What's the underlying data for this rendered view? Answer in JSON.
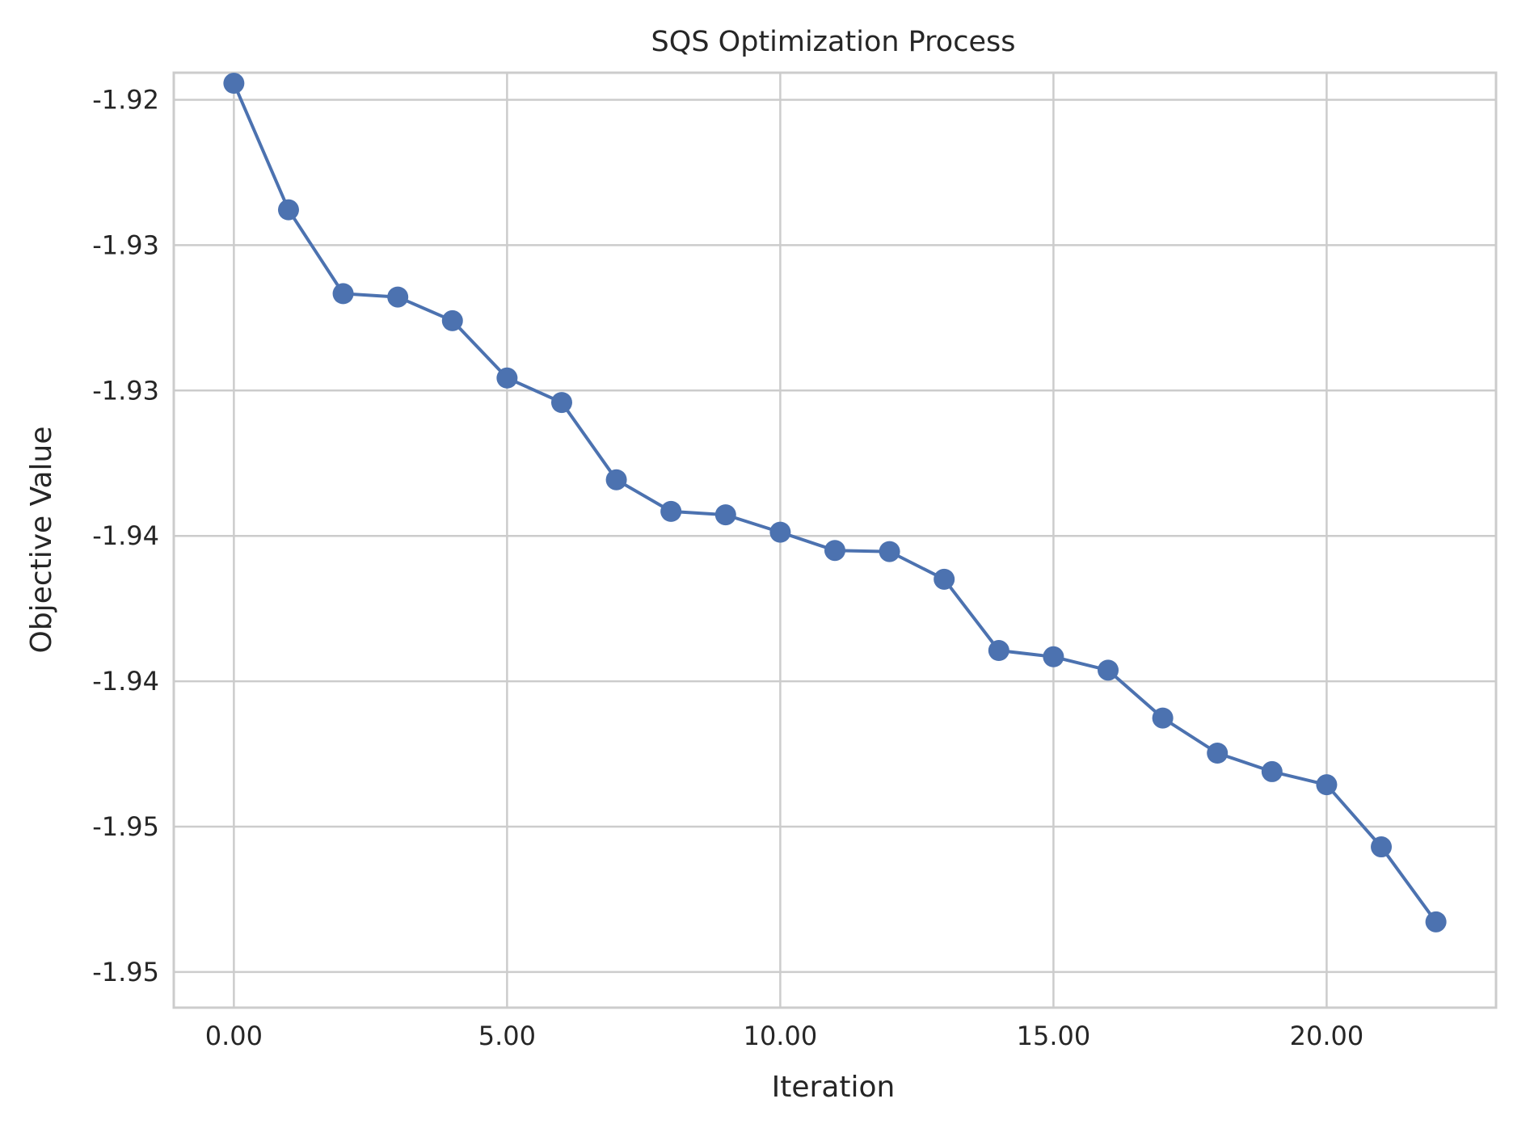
{
  "chart_data": {
    "type": "line",
    "title": "SQS Optimization Process",
    "xlabel": "Iteration",
    "ylabel": "Objective Value",
    "xlim": [
      -1.1,
      23.1
    ],
    "ylim": [
      -1.95465,
      -1.92185
    ],
    "x_ticks": [
      0,
      5,
      10,
      15,
      20
    ],
    "x_tick_labels": [
      "0.00",
      "5.00",
      "10.00",
      "15.00",
      "20.00"
    ],
    "y_ticks": [
      -1.9228,
      -1.9279,
      -1.933,
      -1.9381,
      -1.9432,
      -1.9483,
      -1.9534
    ],
    "y_tick_labels": [
      "-1.92",
      "-1.93",
      "-1.93",
      "-1.94",
      "-1.94",
      "-1.95",
      "-1.95"
    ],
    "grid": true,
    "color": "#4c72b0",
    "x": [
      0,
      1,
      2,
      3,
      4,
      5,
      6,
      7,
      8,
      9,
      10,
      11,
      12,
      13,
      14,
      15,
      16,
      17,
      18,
      19,
      20,
      21,
      22
    ],
    "values": [
      -1.92222,
      -1.92666,
      -1.9296,
      -1.92972,
      -1.93055,
      -1.93256,
      -1.93342,
      -1.93613,
      -1.93724,
      -1.93736,
      -1.93797,
      -1.93861,
      -1.93865,
      -1.93962,
      -1.94212,
      -1.94234,
      -1.94281,
      -1.94449,
      -1.94572,
      -1.94637,
      -1.94683,
      -1.94901,
      -1.95164
    ]
  }
}
